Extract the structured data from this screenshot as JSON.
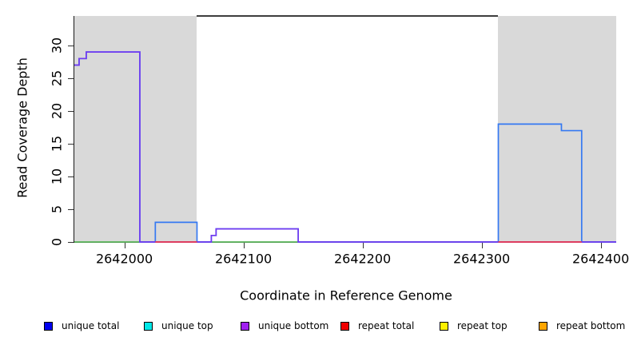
{
  "figure": {
    "y_axis_label": "Read Coverage Depth",
    "x_axis_label": "Coordinate in Reference Genome"
  },
  "legend": {
    "items": [
      {
        "label": "unique total",
        "color": "#0000f0"
      },
      {
        "label": "unique top",
        "color": "#00e8e8"
      },
      {
        "label": "unique bottom",
        "color": "#a020f0"
      },
      {
        "label": "repeat total",
        "color": "#f00000"
      },
      {
        "label": "repeat top",
        "color": "#fff000"
      },
      {
        "label": "repeat bottom",
        "color": "#ffa500"
      }
    ]
  },
  "chart_data": {
    "type": "line",
    "subtype": "step-coverage",
    "title": "",
    "xlabel": "Coordinate in Reference Genome",
    "ylabel": "Read Coverage Depth",
    "xlim": [
      2641958,
      2642413
    ],
    "ylim": [
      0,
      34.5
    ],
    "x_ticks": [
      2642000,
      2642100,
      2642200,
      2642300,
      2642400
    ],
    "y_ticks": [
      0,
      5,
      10,
      15,
      20,
      25,
      30
    ],
    "grid": false,
    "legend_position": "bottom",
    "highlight_regions": {
      "color": "#d9d9d9",
      "ranges": [
        [
          2641958,
          2642061
        ],
        [
          2642314,
          2642413
        ]
      ]
    },
    "top_border_range": [
      2642061,
      2642314
    ],
    "series": [
      {
        "name": "unique top",
        "color": "#5cb85c",
        "points": [
          [
            2641958,
            0
          ],
          [
            2642413,
            0
          ]
        ]
      },
      {
        "name": "unique total",
        "color": "#3579f2",
        "points": [
          [
            2641958,
            27
          ],
          [
            2641962,
            28
          ],
          [
            2641968,
            29
          ],
          [
            2642013,
            0
          ],
          [
            2642026,
            3
          ],
          [
            2642061,
            0
          ],
          [
            2642073,
            1
          ],
          [
            2642077,
            2
          ],
          [
            2642146,
            0
          ],
          [
            2642314,
            18
          ],
          [
            2642367,
            17
          ],
          [
            2642384,
            0
          ],
          [
            2642413,
            0
          ]
        ]
      },
      {
        "name": "unique bottom",
        "color": "#713bf0",
        "points": [
          [
            2641958,
            27
          ],
          [
            2641962,
            28
          ],
          [
            2641968,
            29
          ],
          [
            2642013,
            0
          ],
          [
            2642073,
            1
          ],
          [
            2642077,
            2
          ],
          [
            2642146,
            0
          ],
          [
            2642413,
            0
          ]
        ]
      },
      {
        "name": "repeat total",
        "color": "#ee3a50",
        "value": 0,
        "segments": [
          [
            2642026,
            2642061
          ],
          [
            2642314,
            2642384
          ]
        ]
      }
    ]
  }
}
